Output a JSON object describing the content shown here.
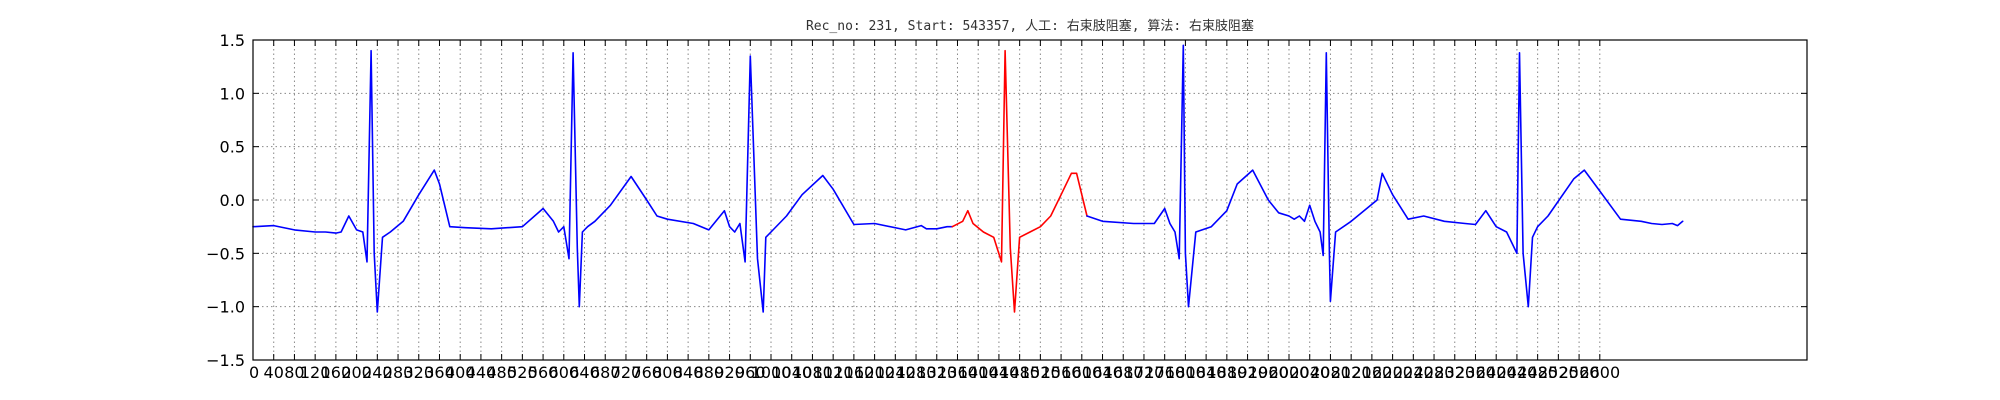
{
  "chart_data": {
    "type": "line",
    "title": "Rec_no: 231, Start: 543357, 人工: 右束肢阻塞, 算法: 右束肢阻塞",
    "xlabel": "",
    "ylabel": "",
    "xlim": [
      0,
      3000
    ],
    "ylim": [
      -1.5,
      1.5
    ],
    "grid": true,
    "yticks": [
      1.5,
      1.0,
      0.5,
      0.0,
      -0.5,
      -1.0,
      -1.5
    ],
    "ytick_labels": [
      "1.5",
      "1.0",
      "0.5",
      "0.0",
      "−0.5",
      "−1.0",
      "−1.5"
    ],
    "xtick_step": 40,
    "xtick_labels": [
      "0",
      "40",
      "80",
      "120",
      "160",
      "200",
      "240",
      "280",
      "320",
      "360",
      "400",
      "440",
      "480",
      "520",
      "560",
      "600",
      "640",
      "680",
      "720",
      "760",
      "800",
      "840",
      "880",
      "920",
      "960",
      "1000",
      "1040",
      "1080",
      "1120",
      "1160",
      "1200",
      "1240",
      "1280",
      "1320",
      "1360",
      "1400",
      "1440",
      "1480",
      "1520",
      "1560",
      "1600",
      "1640",
      "1680",
      "1720",
      "1760",
      "1800",
      "1840",
      "1880",
      "1920",
      "1960",
      "2000",
      "2040",
      "2080",
      "2120",
      "2160",
      "2200",
      "2240",
      "2280",
      "2320",
      "2360",
      "2400",
      "2440",
      "2480",
      "2520",
      "2560",
      "2600"
    ],
    "series": [
      {
        "color": "#0000ff",
        "x": [
          0,
          40,
          80,
          120,
          140,
          160,
          170,
          185,
          200,
          212,
          220,
          228,
          234,
          240,
          250,
          265,
          290,
          320,
          350,
          360,
          380,
          410,
          460,
          520,
          560,
          580,
          590,
          600,
          610,
          618,
          626,
          630,
          636,
          646,
          660,
          690,
          730,
          760,
          780,
          800,
          850,
          880,
          910,
          920,
          930,
          940,
          950,
          960,
          960,
          974,
          985,
          990,
          1000,
          1030,
          1060,
          1100,
          1120,
          1160,
          1200,
          1260,
          1290,
          1300,
          1320,
          1340,
          1350
        ],
        "y": [
          -0.25,
          -0.24,
          -0.28,
          -0.3,
          -0.3,
          -0.31,
          -0.3,
          -0.15,
          -0.28,
          -0.3,
          -0.58,
          1.4,
          -0.5,
          -1.05,
          -0.35,
          -0.3,
          -0.2,
          0.05,
          0.28,
          0.15,
          -0.25,
          -0.26,
          -0.27,
          -0.25,
          -0.08,
          -0.2,
          -0.3,
          -0.25,
          -0.55,
          1.38,
          -0.45,
          -1.0,
          -0.3,
          -0.25,
          -0.2,
          -0.05,
          0.22,
          0.0,
          -0.15,
          -0.18,
          -0.22,
          -0.28,
          -0.1,
          -0.25,
          -0.3,
          -0.22,
          -0.58,
          1.35,
          1.35,
          -0.55,
          -1.05,
          -0.35,
          -0.3,
          -0.15,
          0.05,
          0.23,
          0.1,
          -0.23,
          -0.22,
          -0.28,
          -0.24,
          -0.27,
          -0.27,
          -0.25,
          -0.25
        ]
      },
      {
        "color": "#ff0000",
        "x": [
          1350,
          1370,
          1380,
          1390,
          1410,
          1430,
          1445,
          1452,
          1462,
          1470,
          1480,
          1500,
          1520,
          1540,
          1560,
          1580,
          1590,
          1610
        ],
        "y": [
          -0.25,
          -0.2,
          -0.1,
          -0.22,
          -0.3,
          -0.35,
          -0.58,
          1.4,
          -0.45,
          -1.05,
          -0.35,
          -0.3,
          -0.25,
          -0.15,
          0.05,
          0.25,
          0.25,
          -0.15
        ]
      },
      {
        "color": "#0000ff",
        "x": [
          1610,
          1640,
          1700,
          1740,
          1760,
          1770,
          1780,
          1788,
          1796,
          1800,
          1806,
          1820,
          1850,
          1880,
          1900,
          1930,
          1960,
          1980,
          2000,
          2010,
          2020,
          2030,
          2040,
          2050,
          2060,
          2066,
          2072,
          2078,
          2080,
          2090,
          2120,
          2170,
          2180,
          2200,
          2230,
          2260,
          2300,
          2340,
          2360,
          2380,
          2400,
          2420,
          2440,
          2445,
          2452,
          2462,
          2470,
          2480,
          2500,
          2550,
          2570,
          2590,
          2640,
          2680,
          2700,
          2720,
          2740,
          2750,
          2760
        ],
        "y": [
          -0.15,
          -0.2,
          -0.22,
          -0.22,
          -0.08,
          -0.22,
          -0.3,
          -0.55,
          1.45,
          -0.5,
          -1.0,
          -0.3,
          -0.25,
          -0.1,
          0.15,
          0.28,
          0.0,
          -0.12,
          -0.15,
          -0.18,
          -0.15,
          -0.2,
          -0.05,
          -0.2,
          -0.3,
          -0.52,
          1.38,
          -0.5,
          -0.95,
          -0.3,
          -0.2,
          0.0,
          0.25,
          0.05,
          -0.18,
          -0.15,
          -0.2,
          -0.22,
          -0.23,
          -0.1,
          -0.25,
          -0.3,
          -0.5,
          1.38,
          -0.5,
          -1.0,
          -0.35,
          -0.25,
          -0.15,
          0.2,
          0.28,
          0.15,
          -0.18,
          -0.2,
          -0.22,
          -0.23,
          -0.22,
          -0.24,
          -0.2
        ]
      }
    ]
  }
}
